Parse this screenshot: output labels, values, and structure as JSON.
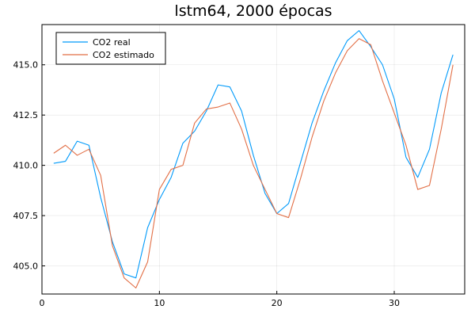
{
  "chart_data": {
    "type": "line",
    "title": "lstm64, 2000 épocas",
    "xlabel": "",
    "ylabel": "",
    "xlim": [
      0,
      36
    ],
    "ylim": [
      403.6,
      417.0
    ],
    "xticks": [
      0,
      10,
      20,
      30
    ],
    "yticks": [
      405.0,
      407.5,
      410.0,
      412.5,
      415.0
    ],
    "ytick_labels": [
      "405.0",
      "407.5",
      "410.0",
      "412.5",
      "415.0"
    ],
    "grid": true,
    "legend_position": "top-left",
    "x": [
      1,
      2,
      3,
      4,
      5,
      6,
      7,
      8,
      9,
      10,
      11,
      12,
      13,
      14,
      15,
      16,
      17,
      18,
      19,
      20,
      21,
      22,
      23,
      24,
      25,
      26,
      27,
      28,
      29,
      30,
      31,
      32,
      33,
      34,
      35
    ],
    "series": [
      {
        "name": "CO2 real",
        "color": "#009AFA",
        "values": [
          410.1,
          410.2,
          411.2,
          411.0,
          408.4,
          406.2,
          404.6,
          404.4,
          406.9,
          408.3,
          409.4,
          411.1,
          411.7,
          412.7,
          414.0,
          413.9,
          412.7,
          410.5,
          408.6,
          407.6,
          408.1,
          410.1,
          412.1,
          413.7,
          415.1,
          416.2,
          416.7,
          415.9,
          415.0,
          413.3,
          410.4,
          409.4,
          410.8,
          413.6,
          415.5
        ]
      },
      {
        "name": "CO2 estimado",
        "color": "#E26F46",
        "values": [
          410.6,
          411.0,
          410.5,
          410.8,
          409.5,
          406.0,
          404.4,
          403.9,
          405.2,
          408.8,
          409.8,
          410.0,
          412.1,
          412.8,
          412.9,
          413.1,
          411.8,
          410.0,
          408.8,
          407.6,
          407.4,
          409.3,
          411.4,
          413.2,
          414.6,
          415.7,
          416.3,
          416.0,
          414.2,
          412.6,
          411.0,
          408.8,
          409.0,
          411.8,
          415.0
        ]
      }
    ]
  }
}
